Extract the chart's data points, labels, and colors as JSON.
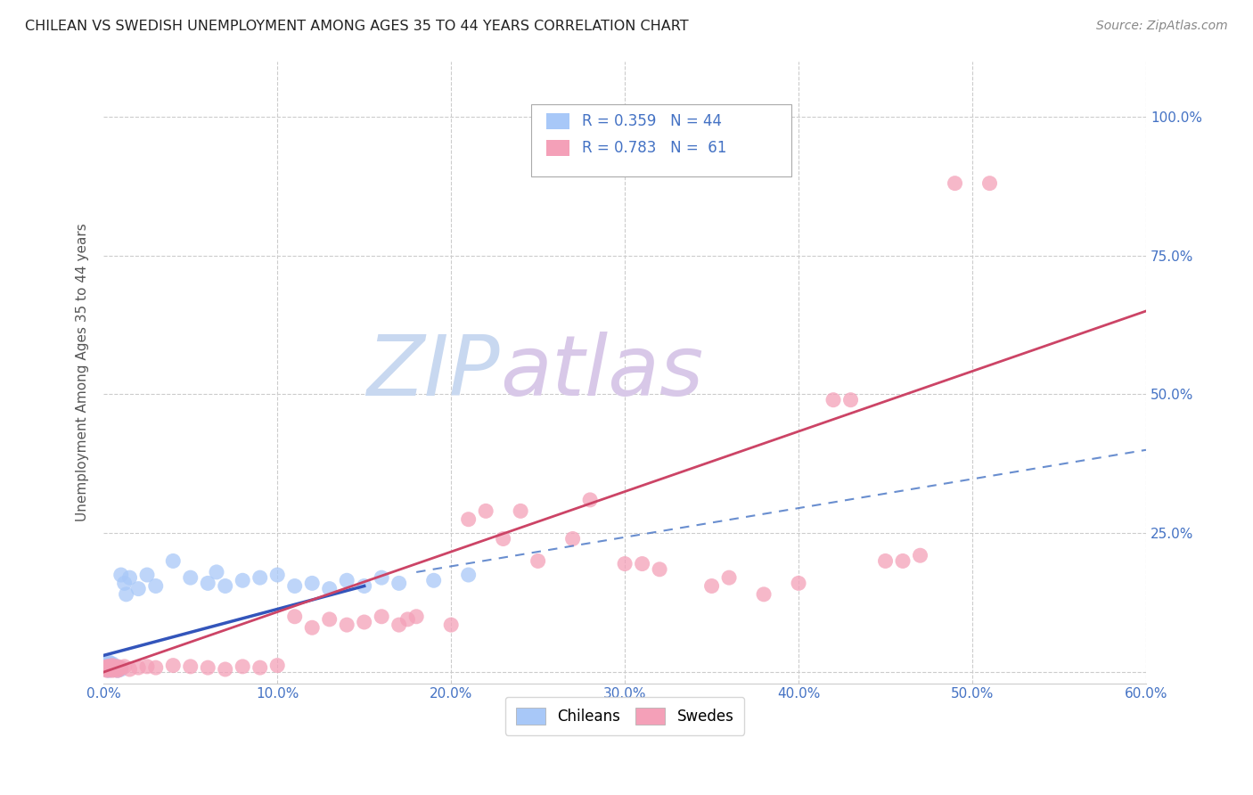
{
  "title": "CHILEAN VS SWEDISH UNEMPLOYMENT AMONG AGES 35 TO 44 YEARS CORRELATION CHART",
  "source": "Source: ZipAtlas.com",
  "ylabel": "Unemployment Among Ages 35 to 44 years",
  "xlim": [
    0.0,
    0.6
  ],
  "ylim": [
    -0.02,
    1.1
  ],
  "xticks": [
    0.0,
    0.1,
    0.2,
    0.3,
    0.4,
    0.5,
    0.6
  ],
  "xticklabels": [
    "0.0%",
    "10.0%",
    "20.0%",
    "30.0%",
    "40.0%",
    "50.0%",
    "60.0%"
  ],
  "yticks": [
    0.0,
    0.25,
    0.5,
    0.75,
    1.0
  ],
  "yticklabels": [
    "",
    "25.0%",
    "50.0%",
    "75.0%",
    "100.0%"
  ],
  "legend_R_chilean": "R = 0.359",
  "legend_N_chilean": "N = 44",
  "legend_R_swedish": "R = 0.783",
  "legend_N_swedish": "N =  61",
  "chilean_color": "#a8c8f8",
  "swedish_color": "#f4a0b8",
  "chilean_line_color": "#3355bb",
  "swedish_line_color": "#cc4466",
  "blue_text_color": "#4472c4",
  "watermark_zip_color": "#c8d8f0",
  "watermark_atlas_color": "#d8c8e8",
  "background_color": "#ffffff",
  "grid_color": "#cccccc",
  "chilean_scatter": [
    [
      0.001,
      0.005
    ],
    [
      0.001,
      0.01
    ],
    [
      0.002,
      0.005
    ],
    [
      0.002,
      0.008
    ],
    [
      0.002,
      0.015
    ],
    [
      0.003,
      0.003
    ],
    [
      0.003,
      0.008
    ],
    [
      0.003,
      0.012
    ],
    [
      0.003,
      0.018
    ],
    [
      0.004,
      0.005
    ],
    [
      0.004,
      0.01
    ],
    [
      0.004,
      0.015
    ],
    [
      0.005,
      0.008
    ],
    [
      0.005,
      0.015
    ],
    [
      0.006,
      0.005
    ],
    [
      0.006,
      0.01
    ],
    [
      0.007,
      0.01
    ],
    [
      0.008,
      0.003
    ],
    [
      0.009,
      0.008
    ],
    [
      0.01,
      0.005
    ],
    [
      0.01,
      0.175
    ],
    [
      0.012,
      0.16
    ],
    [
      0.013,
      0.14
    ],
    [
      0.015,
      0.17
    ],
    [
      0.02,
      0.15
    ],
    [
      0.025,
      0.175
    ],
    [
      0.03,
      0.155
    ],
    [
      0.04,
      0.2
    ],
    [
      0.05,
      0.17
    ],
    [
      0.06,
      0.16
    ],
    [
      0.065,
      0.18
    ],
    [
      0.07,
      0.155
    ],
    [
      0.08,
      0.165
    ],
    [
      0.09,
      0.17
    ],
    [
      0.1,
      0.175
    ],
    [
      0.11,
      0.155
    ],
    [
      0.12,
      0.16
    ],
    [
      0.13,
      0.15
    ],
    [
      0.14,
      0.165
    ],
    [
      0.15,
      0.155
    ],
    [
      0.16,
      0.17
    ],
    [
      0.17,
      0.16
    ],
    [
      0.19,
      0.165
    ],
    [
      0.21,
      0.175
    ]
  ],
  "swedish_scatter": [
    [
      0.001,
      0.005
    ],
    [
      0.001,
      0.008
    ],
    [
      0.002,
      0.003
    ],
    [
      0.002,
      0.01
    ],
    [
      0.003,
      0.005
    ],
    [
      0.003,
      0.01
    ],
    [
      0.004,
      0.005
    ],
    [
      0.004,
      0.008
    ],
    [
      0.005,
      0.003
    ],
    [
      0.005,
      0.012
    ],
    [
      0.006,
      0.005
    ],
    [
      0.006,
      0.01
    ],
    [
      0.007,
      0.005
    ],
    [
      0.007,
      0.008
    ],
    [
      0.008,
      0.003
    ],
    [
      0.008,
      0.01
    ],
    [
      0.009,
      0.005
    ],
    [
      0.01,
      0.008
    ],
    [
      0.012,
      0.01
    ],
    [
      0.015,
      0.005
    ],
    [
      0.02,
      0.008
    ],
    [
      0.025,
      0.01
    ],
    [
      0.03,
      0.008
    ],
    [
      0.04,
      0.012
    ],
    [
      0.05,
      0.01
    ],
    [
      0.06,
      0.008
    ],
    [
      0.07,
      0.005
    ],
    [
      0.08,
      0.01
    ],
    [
      0.09,
      0.008
    ],
    [
      0.1,
      0.012
    ],
    [
      0.11,
      0.1
    ],
    [
      0.12,
      0.08
    ],
    [
      0.13,
      0.095
    ],
    [
      0.14,
      0.085
    ],
    [
      0.15,
      0.09
    ],
    [
      0.16,
      0.1
    ],
    [
      0.17,
      0.085
    ],
    [
      0.175,
      0.095
    ],
    [
      0.18,
      0.1
    ],
    [
      0.2,
      0.085
    ],
    [
      0.21,
      0.275
    ],
    [
      0.22,
      0.29
    ],
    [
      0.23,
      0.24
    ],
    [
      0.24,
      0.29
    ],
    [
      0.25,
      0.2
    ],
    [
      0.27,
      0.24
    ],
    [
      0.28,
      0.31
    ],
    [
      0.3,
      0.195
    ],
    [
      0.31,
      0.195
    ],
    [
      0.32,
      0.185
    ],
    [
      0.35,
      0.155
    ],
    [
      0.36,
      0.17
    ],
    [
      0.38,
      0.14
    ],
    [
      0.4,
      0.16
    ],
    [
      0.42,
      0.49
    ],
    [
      0.43,
      0.49
    ],
    [
      0.49,
      0.88
    ],
    [
      0.51,
      0.88
    ],
    [
      0.45,
      0.2
    ],
    [
      0.46,
      0.2
    ],
    [
      0.47,
      0.21
    ]
  ],
  "chilean_trend": [
    0.0,
    0.15,
    0.0,
    0.15
  ],
  "swedish_trend_x": [
    0.0,
    0.6
  ],
  "swedish_trend_y": [
    0.0,
    0.65
  ],
  "dashed_trend_x": [
    0.18,
    0.6
  ],
  "dashed_trend_y": [
    0.18,
    0.4
  ]
}
